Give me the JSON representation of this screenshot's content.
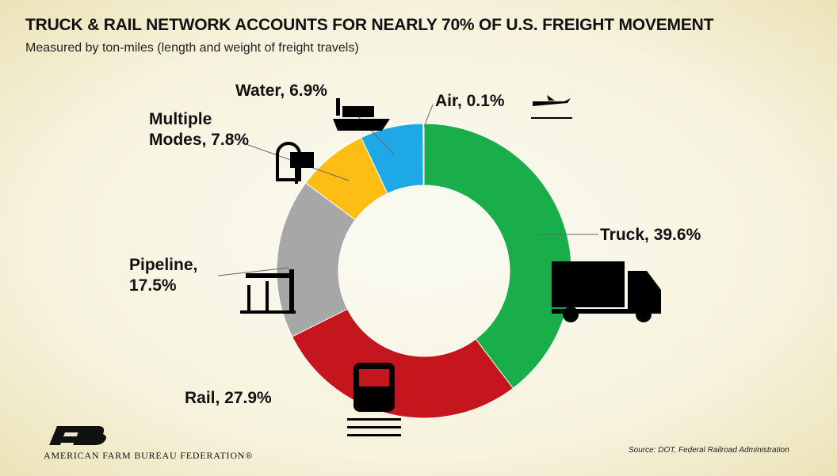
{
  "chart_data": {
    "type": "donut",
    "title": "TRUCK & RAIL NETWORK ACCOUNTS FOR NEARLY 70% OF U.S. FREIGHT MOVEMENT",
    "subtitle": "Measured by ton-miles (length and weight of freight travels)",
    "values": [
      39.6,
      27.9,
      17.5,
      7.8,
      6.9,
      0.1
    ],
    "value_labels": [
      "Truck, 39.6%",
      "Rail, 27.9%",
      "Pipeline, 17.5%",
      "Multiple Modes, 7.8%",
      "Water, 6.9%",
      "Air, 0.1%"
    ],
    "colors": [
      "#1aae4a",
      "#c4161c",
      "#a7a7a7",
      "#fdbd12",
      "#1ea8e6",
      "#e8e8e8"
    ],
    "source": "Source: DOT, Federal Railroad Administration",
    "organization": "AMERICAN FARM BUREAU FEDERATION®"
  }
}
